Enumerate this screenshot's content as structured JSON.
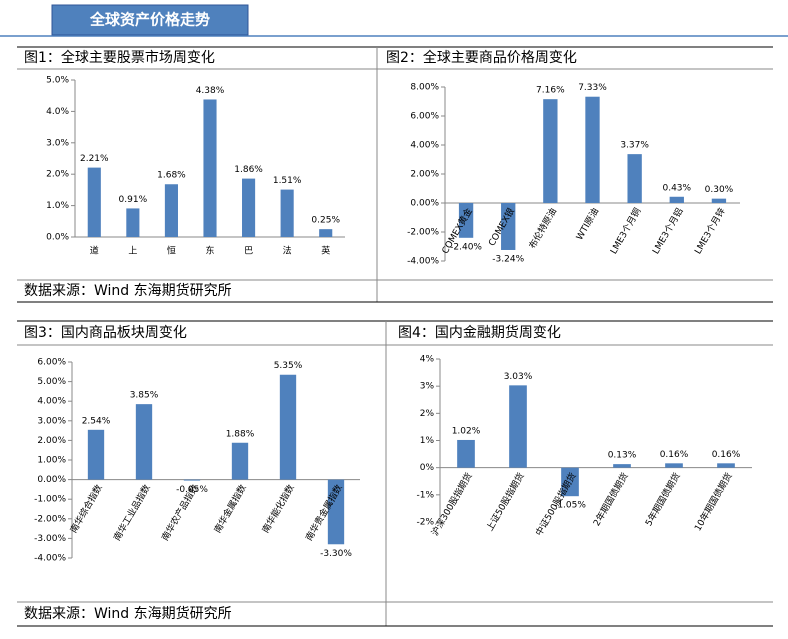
{
  "header": {
    "title": "全球资产价格走势"
  },
  "sources": [
    "数据来源：Wind 东海期货研究所",
    "数据来源：Wind  东海期货研究所"
  ],
  "chart_data": [
    {
      "type": "bar",
      "title": "图1：全球主要股票市场周变化",
      "color": "#4f81bd",
      "categories": [
        "道",
        "上",
        "恒",
        "东",
        "巴",
        "法",
        "英"
      ],
      "values": [
        2.21,
        0.91,
        1.68,
        4.38,
        1.86,
        1.51,
        0.25
      ],
      "value_labels": [
        "2.21%",
        "0.91%",
        "1.68%",
        "4.38%",
        "1.86%",
        "1.51%",
        "0.25%"
      ],
      "ylim": [
        0,
        5
      ],
      "yticks": [
        {
          "value": 0,
          "label": "0.0%"
        },
        {
          "value": 1,
          "label": "1.0%"
        },
        {
          "value": 2,
          "label": "2.0%"
        },
        {
          "value": 3,
          "label": "3.0%"
        },
        {
          "value": 4,
          "label": "4.0%"
        },
        {
          "value": 5,
          "label": "5.0%"
        }
      ]
    },
    {
      "type": "bar",
      "title": "图2：全球主要商品价格周变化",
      "color": "#4f81bd",
      "categories": [
        "COMEX黄金",
        "COMEX银",
        "布伦特原油",
        "WTI原油",
        "LME3个月铜",
        "LME3个月铝",
        "LME3个月锌"
      ],
      "values": [
        -2.4,
        -3.24,
        7.16,
        7.33,
        3.37,
        0.43,
        0.3
      ],
      "value_labels": [
        "-2.40%",
        "-3.24%",
        "7.16%",
        "7.33%",
        "3.37%",
        "0.43%",
        "0.30%"
      ],
      "ylim": [
        -4,
        8
      ],
      "yticks": [
        {
          "value": -4,
          "label": "-4.00%"
        },
        {
          "value": -2,
          "label": "-2.00%"
        },
        {
          "value": 0,
          "label": "0.00%"
        },
        {
          "value": 2,
          "label": "2.00%"
        },
        {
          "value": 4,
          "label": "4.00%"
        },
        {
          "value": 6,
          "label": "6.00%"
        },
        {
          "value": 8,
          "label": "8.00%"
        }
      ]
    },
    {
      "type": "bar",
      "title": "图3：国内商品板块周变化",
      "color": "#4f81bd",
      "categories": [
        "南华综合指数",
        "南华工业品指数",
        "南华农产品指数",
        "南华金属指数",
        "南华能化指数",
        "南华贵金属指数"
      ],
      "values": [
        2.54,
        3.85,
        -0.05,
        1.88,
        5.35,
        -3.3
      ],
      "value_labels": [
        "2.54%",
        "3.85%",
        "-0.05%",
        "1.88%",
        "5.35%",
        "-3.30%"
      ],
      "ylim": [
        -4,
        6
      ],
      "yticks": [
        {
          "value": -4,
          "label": "-4.00%"
        },
        {
          "value": -3,
          "label": "-3.00%"
        },
        {
          "value": -2,
          "label": "-2.00%"
        },
        {
          "value": -1,
          "label": "-1.00%"
        },
        {
          "value": 0,
          "label": "0.00%"
        },
        {
          "value": 1,
          "label": "1.00%"
        },
        {
          "value": 2,
          "label": "2.00%"
        },
        {
          "value": 3,
          "label": "3.00%"
        },
        {
          "value": 4,
          "label": "4.00%"
        },
        {
          "value": 5,
          "label": "5.00%"
        },
        {
          "value": 6,
          "label": "6.00%"
        }
      ]
    },
    {
      "type": "bar",
      "title": "图4：国内金融期货周变化",
      "color": "#4f81bd",
      "categories": [
        "沪深300股指期货",
        "上证50股指期货",
        "中证500股指期货",
        "2年期国债期货",
        "5年期国债期货",
        "10年期国债期货"
      ],
      "values": [
        1.02,
        3.03,
        -1.05,
        0.13,
        0.16,
        0.16
      ],
      "value_labels": [
        "1.02%",
        "3.03%",
        "-1.05%",
        "0.13%",
        "0.16%",
        "0.16%"
      ],
      "ylim": [
        -2,
        4
      ],
      "yticks": [
        {
          "value": -2,
          "label": "-2%"
        },
        {
          "value": -1,
          "label": "-1%"
        },
        {
          "value": 0,
          "label": "0%"
        },
        {
          "value": 1,
          "label": "1%"
        },
        {
          "value": 2,
          "label": "2%"
        },
        {
          "value": 3,
          "label": "3%"
        },
        {
          "value": 4,
          "label": "4%"
        }
      ]
    }
  ]
}
